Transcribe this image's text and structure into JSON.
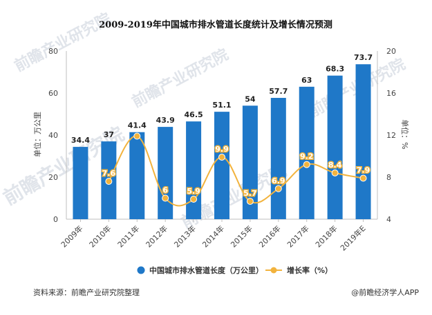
{
  "chart_data": {
    "type": "bar",
    "title": "2009-2019年中国城市排水管道长度统计及增长情况预测",
    "categories": [
      "2009年",
      "2010年",
      "2011年",
      "2012年",
      "2013年",
      "2014年",
      "2015年",
      "2016年",
      "2017年",
      "2018年",
      "2019年E"
    ],
    "series": [
      {
        "name": "中国城市排水管道长度（万公里）",
        "type": "bar",
        "axis": "left",
        "values": [
          34.4,
          37,
          41.4,
          43.9,
          46.5,
          51.1,
          54,
          57.7,
          63,
          68.3,
          73.7
        ]
      },
      {
        "name": "增长率（%）",
        "type": "line",
        "axis": "right",
        "values": [
          null,
          7.6,
          11.9,
          6,
          5.9,
          9.9,
          5.7,
          6.9,
          9.2,
          8.4,
          7.9
        ],
        "labels": [
          "",
          "7.6",
          "",
          "6",
          "5.9",
          "9.9",
          "5.7",
          "6.9",
          "9.2",
          "8.4",
          "7.9"
        ]
      }
    ],
    "y_left": {
      "label": "单位：万公里",
      "ylim": [
        0,
        80
      ],
      "ticks": [
        "0",
        "20",
        "40",
        "60",
        "80"
      ]
    },
    "y_right": {
      "label": "单位：%",
      "ylim": [
        4,
        20
      ],
      "ticks": [
        "4",
        "8",
        "12",
        "16",
        "20"
      ]
    },
    "legend": [
      {
        "name": "中国城市排水管道长度（万公里）"
      },
      {
        "name": "增长率（%）"
      }
    ],
    "grid": false,
    "legend_position": "bottom"
  },
  "colors": {
    "bar": "#1f78c8",
    "line": "#f2b33d",
    "axis": "#bfbfbf"
  },
  "footer": {
    "source": "资料来源：前瞻产业研究院整理",
    "credit": "@前瞻经济学人APP"
  },
  "watermark": {
    "brand": "前瞻产业研究院"
  }
}
